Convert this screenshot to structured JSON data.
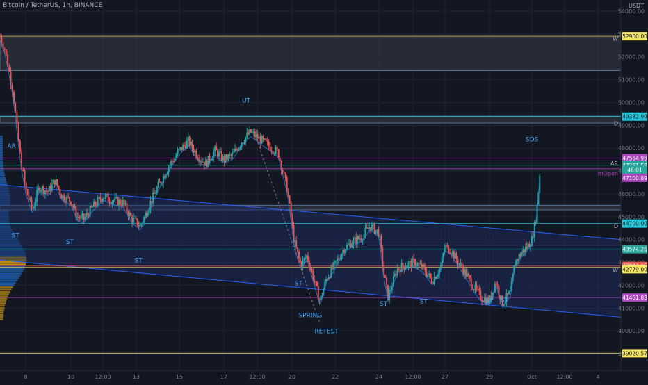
{
  "header": {
    "symbol": "Bitcoin / TetherUS, 1h, BINANCE",
    "currency": "USDT"
  },
  "colors": {
    "background": "#131722",
    "grid": "#1f2433",
    "up": "#26a69a",
    "down": "#ef5350",
    "zone_fill": "#2a2e39",
    "zone_border": "#5b7fa8",
    "channel_fill": "#1e2a5a",
    "channel_line": "#2962ff",
    "label_blue": "#42a5f5",
    "yellow": "#f5e663",
    "magenta": "#ab47bc",
    "teal": "#26c6da",
    "red": "#ef5350"
  },
  "chart_data": {
    "type": "candlestick",
    "title": "Bitcoin / TetherUS, 1h, BINANCE",
    "ylabel": "USDT",
    "ylim": [
      39000,
      54000
    ],
    "y_ticks": [
      54000,
      53000,
      52000,
      51000,
      50000,
      49000,
      48000,
      47000,
      46000,
      45000,
      44000,
      43000,
      42000,
      41000,
      40000,
      39000
    ],
    "x_ticks": [
      "8",
      "10",
      "12:00",
      "13",
      "15",
      "17",
      "12:00",
      "20",
      "22",
      "24",
      "12:00",
      "27",
      "29",
      "Oct",
      "12:00",
      "4"
    ],
    "price_path": [
      [
        7.0,
        52900
      ],
      [
        7.2,
        52300
      ],
      [
        7.5,
        50500
      ],
      [
        7.8,
        47500
      ],
      [
        8.0,
        46200
      ],
      [
        8.3,
        45300
      ],
      [
        8.6,
        46300
      ],
      [
        9.0,
        46100
      ],
      [
        9.3,
        46600
      ],
      [
        9.6,
        45900
      ],
      [
        10.0,
        45700
      ],
      [
        10.3,
        45000
      ],
      [
        10.6,
        44900
      ],
      [
        11.0,
        45400
      ],
      [
        11.5,
        45900
      ],
      [
        12.0,
        45700
      ],
      [
        12.4,
        45600
      ],
      [
        12.8,
        44900
      ],
      [
        13.2,
        44600
      ],
      [
        13.6,
        45500
      ],
      [
        14.0,
        46300
      ],
      [
        14.5,
        47200
      ],
      [
        15.0,
        47900
      ],
      [
        15.4,
        48300
      ],
      [
        15.8,
        47700
      ],
      [
        16.2,
        47300
      ],
      [
        16.6,
        47900
      ],
      [
        17.0,
        47500
      ],
      [
        17.4,
        47700
      ],
      [
        17.8,
        48300
      ],
      [
        18.2,
        48700
      ],
      [
        18.6,
        48400
      ],
      [
        19.0,
        48100
      ],
      [
        19.4,
        47800
      ],
      [
        19.8,
        46200
      ],
      [
        20.1,
        43900
      ],
      [
        20.4,
        42900
      ],
      [
        20.7,
        43300
      ],
      [
        21.0,
        42300
      ],
      [
        21.3,
        41300
      ],
      [
        21.6,
        42300
      ],
      [
        22.0,
        42900
      ],
      [
        22.4,
        43600
      ],
      [
        22.8,
        43900
      ],
      [
        23.2,
        44100
      ],
      [
        23.6,
        44600
      ],
      [
        24.0,
        44300
      ],
      [
        24.2,
        42600
      ],
      [
        24.4,
        41500
      ],
      [
        24.8,
        42700
      ],
      [
        25.2,
        42900
      ],
      [
        25.6,
        43000
      ],
      [
        26.0,
        42700
      ],
      [
        26.4,
        42200
      ],
      [
        26.8,
        42800
      ],
      [
        27.0,
        43700
      ],
      [
        27.3,
        43500
      ],
      [
        27.6,
        43000
      ],
      [
        28.0,
        42400
      ],
      [
        28.3,
        41900
      ],
      [
        28.6,
        41500
      ],
      [
        29.0,
        41300
      ],
      [
        29.3,
        42200
      ],
      [
        29.6,
        41200
      ],
      [
        30.0,
        41700
      ],
      [
        30.2,
        43000
      ],
      [
        30.5,
        43400
      ],
      [
        30.8,
        43700
      ],
      [
        31.0,
        44000
      ],
      [
        31.2,
        45000
      ],
      [
        31.4,
        47300
      ]
    ],
    "zones": [
      {
        "from": 51400,
        "to": 52900
      },
      {
        "from": 49100,
        "to": 49400
      },
      {
        "from": 45300,
        "to": 45500
      }
    ],
    "channel": {
      "upper": [
        [
          7.0,
          46400
        ],
        [
          35.0,
          44000
        ]
      ],
      "lower": [
        [
          7.0,
          43100
        ],
        [
          35.0,
          40600
        ]
      ]
    },
    "horizontal_lines": [
      {
        "price": 52900,
        "color": "#c9a227",
        "tag": "W"
      },
      {
        "price": 49382.99,
        "color": "#26c6da",
        "tag": "D"
      },
      {
        "price": 47564.93,
        "color": "#ab47bc",
        "tag": ""
      },
      {
        "price": 47251.58,
        "color": "#26a69a",
        "tag": ""
      },
      {
        "price": 47100.89,
        "color": "#ab47bc",
        "tag": "mOpen"
      },
      {
        "price": 44700.0,
        "color": "#26c6da",
        "tag": "D"
      },
      {
        "price": 43574.26,
        "color": "#26a69a",
        "tag": ""
      },
      {
        "price": 42843.05,
        "color": "#ef5350",
        "tag": ""
      },
      {
        "price": 42779.0,
        "color": "#f5e663",
        "tag": "W"
      },
      {
        "price": 41461.83,
        "color": "#ab47bc",
        "tag": ""
      },
      {
        "price": 39020.57,
        "color": "#f5e663",
        "tag": "W"
      }
    ],
    "price_tags": [
      {
        "label": "52900.00",
        "price": 52900,
        "bg": "#f5e663",
        "fg": "#131722"
      },
      {
        "label": "49382.99",
        "price": 49382.99,
        "bg": "#26c6da",
        "fg": "#131722"
      },
      {
        "label": "47564.93",
        "price": 47564.93,
        "bg": "#ab47bc",
        "fg": "#ffffff"
      },
      {
        "label": "47251.58",
        "price": 47251.58,
        "bg": "#26a69a",
        "fg": "#ffffff"
      },
      {
        "label": "46:01",
        "price": 47050,
        "bg": "#26a69a",
        "fg": "#ffffff"
      },
      {
        "label": "47100.89",
        "price": 46700,
        "bg": "#ab47bc",
        "fg": "#ffffff"
      },
      {
        "label": "44700.00",
        "price": 44700,
        "bg": "#26c6da",
        "fg": "#131722"
      },
      {
        "label": "43574.26",
        "price": 43574.26,
        "bg": "#26a69a",
        "fg": "#ffffff"
      },
      {
        "label": "42843.05",
        "price": 42843.05,
        "bg": "#ef5350",
        "fg": "#ffffff"
      },
      {
        "label": "42779.00",
        "price": 42700,
        "bg": "#f5e663",
        "fg": "#131722"
      },
      {
        "label": "41461.83",
        "price": 41461.83,
        "bg": "#ab47bc",
        "fg": "#ffffff"
      },
      {
        "label": "39020.57",
        "price": 39020.57,
        "bg": "#f5e663",
        "fg": "#131722"
      }
    ],
    "annotations": [
      {
        "text": "UT",
        "x": 18.0,
        "y": 50000
      },
      {
        "text": "SOS",
        "x": 31.0,
        "y": 48300
      },
      {
        "text": "AR",
        "x": 7.45,
        "y": 48000
      },
      {
        "text": "ST",
        "x": 7.6,
        "y": 44100
      },
      {
        "text": "ST",
        "x": 9.95,
        "y": 43800
      },
      {
        "text": "ST",
        "x": 13.1,
        "y": 43000
      },
      {
        "text": "ST",
        "x": 20.3,
        "y": 42000
      },
      {
        "text": "SPRING",
        "x": 20.85,
        "y": 40600
      },
      {
        "text": "RETEST",
        "x": 21.6,
        "y": 39900
      },
      {
        "text": "ST",
        "x": 24.2,
        "y": 41100
      },
      {
        "text": "ST",
        "x": 26.0,
        "y": 41200
      },
      {
        "text": "ST",
        "x": 29.0,
        "y": 41200
      },
      {
        "text": "ST",
        "x": 29.7,
        "y": 41250
      }
    ],
    "right_tags": [
      {
        "text": "W",
        "y": 52700
      },
      {
        "text": "D",
        "y": 49000
      },
      {
        "text": "AR",
        "y": 47250
      },
      {
        "text": "mOpen",
        "y": 46800
      },
      {
        "text": "D",
        "y": 44500
      },
      {
        "text": "W",
        "y": 42580
      }
    ]
  }
}
